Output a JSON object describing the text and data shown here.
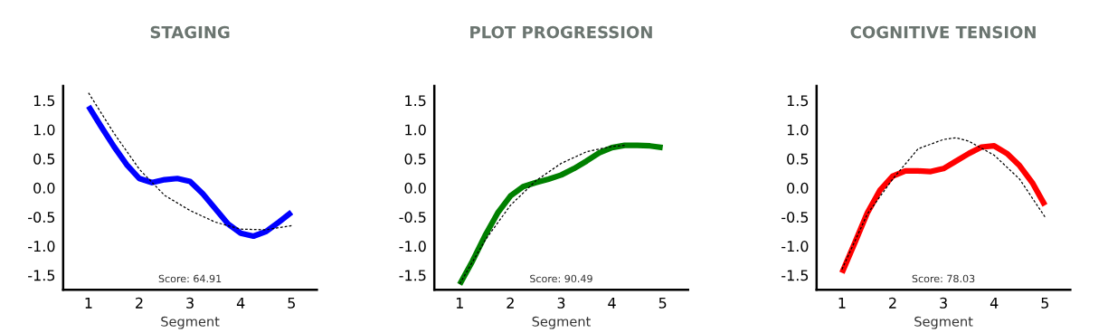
{
  "chart_data": [
    {
      "type": "line",
      "title": "STAGING",
      "xlabel": "Segment",
      "x": [
        1,
        1.25,
        1.5,
        1.75,
        2,
        2.25,
        2.5,
        2.75,
        3,
        3.25,
        3.5,
        3.75,
        4,
        4.25,
        4.5,
        4.75,
        5
      ],
      "series": [
        {
          "color": "#0000ff",
          "line_style": "solid",
          "values": [
            1.4,
            1.05,
            0.71,
            0.4,
            0.16,
            0.09,
            0.14,
            0.16,
            0.11,
            -0.1,
            -0.36,
            -0.62,
            -0.78,
            -0.83,
            -0.75,
            -0.59,
            -0.42
          ]
        },
        {
          "type": "line",
          "color": "#000000",
          "line_style": "dashed",
          "x": [
            1,
            1.5,
            2,
            2.5,
            3,
            3.5,
            4,
            4.5,
            5
          ],
          "values": [
            1.63,
            0.94,
            0.32,
            -0.13,
            -0.39,
            -0.59,
            -0.71,
            -0.72,
            -0.65
          ]
        }
      ],
      "xlim": [
        0.5,
        5.5
      ],
      "ylim": [
        -1.75,
        1.75
      ],
      "xticks": [
        1,
        2,
        3,
        4,
        5
      ],
      "yticks": [
        {
          "value": -1.5,
          "label": "-1.5"
        },
        {
          "value": -1,
          "label": "-1.0"
        },
        {
          "value": -0.5,
          "label": "-0.5"
        },
        {
          "value": 0,
          "label": "0.0"
        },
        {
          "value": 0.5,
          "label": "0.5"
        },
        {
          "value": 1,
          "label": "1.0"
        },
        {
          "value": 1.5,
          "label": "1.5"
        }
      ],
      "annotations": [
        "Score: 64.91"
      ]
    },
    {
      "type": "line",
      "title": "PLOT PROGRESSION",
      "xlabel": "Segment",
      "x": [
        1,
        1.25,
        1.5,
        1.75,
        2,
        2.25,
        2.5,
        2.75,
        3,
        3.25,
        3.5,
        3.75,
        4,
        4.25,
        4.5,
        4.75,
        5
      ],
      "series": [
        {
          "color": "#008000",
          "line_style": "solid",
          "values": [
            -1.66,
            -1.26,
            -0.82,
            -0.43,
            -0.14,
            0.02,
            0.09,
            0.15,
            0.22,
            0.33,
            0.46,
            0.6,
            0.69,
            0.73,
            0.73,
            0.72,
            0.69
          ]
        },
        {
          "type": "line",
          "color": "#000000",
          "line_style": "dashed",
          "x": [
            1,
            1.5,
            2,
            2.5,
            3,
            3.5,
            4,
            4.25
          ],
          "values": [
            -1.65,
            -0.9,
            -0.3,
            0.12,
            0.42,
            0.62,
            0.71,
            0.73
          ]
        }
      ],
      "xlim": [
        0.5,
        5.5
      ],
      "ylim": [
        -1.75,
        1.75
      ],
      "xticks": [
        1,
        2,
        3,
        4,
        5
      ],
      "yticks": [
        {
          "value": -1.5,
          "label": "-1.5"
        },
        {
          "value": -1,
          "label": "-1.0"
        },
        {
          "value": -0.5,
          "label": "-0.5"
        },
        {
          "value": 0,
          "label": "0.0"
        },
        {
          "value": 0.5,
          "label": "0.5"
        },
        {
          "value": 1,
          "label": "1.0"
        },
        {
          "value": 1.5,
          "label": "1.5"
        }
      ],
      "annotations": [
        "Score: 90.49"
      ]
    },
    {
      "type": "line",
      "title": "COGNITIVE TENSION",
      "xlabel": "Segment",
      "x": [
        1,
        1.25,
        1.5,
        1.75,
        2,
        2.25,
        2.5,
        2.75,
        3,
        3.25,
        3.5,
        3.75,
        4,
        4.25,
        4.5,
        4.75,
        5
      ],
      "series": [
        {
          "color": "#ff0000",
          "line_style": "solid",
          "values": [
            -1.46,
            -0.95,
            -0.43,
            -0.04,
            0.2,
            0.29,
            0.29,
            0.28,
            0.33,
            0.46,
            0.59,
            0.7,
            0.72,
            0.59,
            0.38,
            0.09,
            -0.3
          ]
        },
        {
          "type": "line",
          "color": "#000000",
          "line_style": "dashed",
          "x": [
            1,
            1.5,
            2,
            2.5,
            3,
            3.25,
            3.5,
            4,
            4.5,
            5
          ],
          "values": [
            -1.4,
            -0.45,
            0.15,
            0.67,
            0.83,
            0.86,
            0.8,
            0.56,
            0.15,
            -0.5
          ]
        }
      ],
      "xlim": [
        0.5,
        5.5
      ],
      "ylim": [
        -1.75,
        1.75
      ],
      "xticks": [
        1,
        2,
        3,
        4,
        5
      ],
      "yticks": [
        {
          "value": -1.5,
          "label": "-1.5"
        },
        {
          "value": -1,
          "label": "-1.0"
        },
        {
          "value": -0.5,
          "label": "-0.5"
        },
        {
          "value": 0,
          "label": "0.0"
        },
        {
          "value": 0.5,
          "label": "0.5"
        },
        {
          "value": 1,
          "label": "1.0"
        },
        {
          "value": 1.5,
          "label": "1.5"
        }
      ],
      "annotations": [
        "Score: 78.03"
      ]
    }
  ]
}
